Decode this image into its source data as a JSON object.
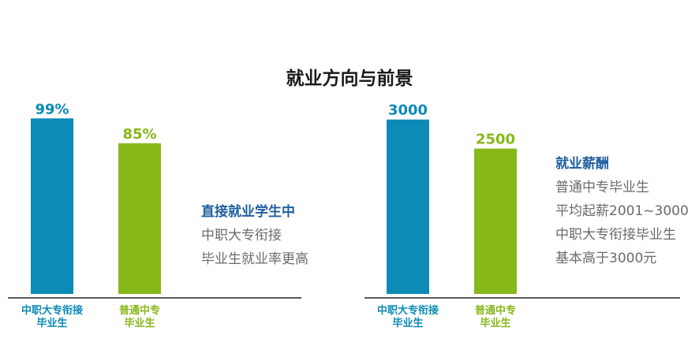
{
  "title": "就业方向与前景",
  "colors": {
    "series1": "#0b8bb5",
    "series2": "#86b81a",
    "note_heading": "#1f5f9f",
    "note_text": "#6b6b6b",
    "axis": "#222222"
  },
  "chart_data": [
    {
      "type": "bar",
      "categories": [
        "中职大专衔接\n毕业生",
        "普通中专\n毕业生"
      ],
      "values": [
        99,
        85
      ],
      "value_labels": [
        "99%",
        "85%"
      ],
      "ylim": [
        0,
        100
      ],
      "grid": false
    },
    {
      "type": "bar",
      "categories": [
        "中职大专衔接\n毕业生",
        "普通中专\n毕业生"
      ],
      "values": [
        3000,
        2500
      ],
      "value_labels": [
        "3000",
        "2500"
      ],
      "ylim": [
        0,
        3050
      ],
      "grid": false
    }
  ],
  "notes": [
    {
      "heading": "直接就业学生中",
      "lines": [
        "中职大专衔接",
        "毕业生就业率更高"
      ]
    },
    {
      "heading": "就业薪酬",
      "lines": [
        "普通中专毕业生",
        "平均起薪2001~3000",
        "中职大专衔接毕业生",
        "基本高于3000元"
      ]
    }
  ]
}
